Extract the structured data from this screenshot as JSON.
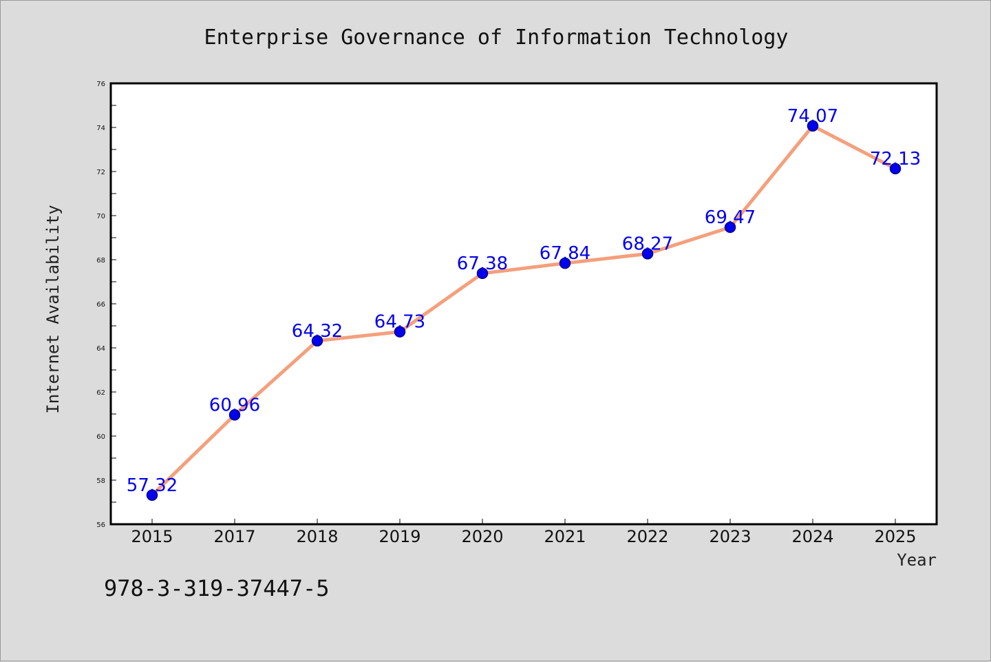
{
  "chart_data": {
    "type": "line",
    "title": "Enterprise Governance of Information Technology",
    "xlabel": "Year",
    "ylabel": "Internet Availability",
    "categories": [
      "2015",
      "2017",
      "2018",
      "2019",
      "2020",
      "2021",
      "2022",
      "2023",
      "2024",
      "2025"
    ],
    "series": [
      {
        "values": [
          57.32,
          60.96,
          64.32,
          64.73,
          67.38,
          67.84,
          68.27,
          69.47,
          74.07,
          72.13
        ]
      }
    ],
    "data_labels": [
      "57.32",
      "60.96",
      "64.32",
      "64.73",
      "67.38",
      "67.84",
      "68.27",
      "69.47",
      "74.07",
      "72.13"
    ],
    "ylim": [
      56,
      76
    ],
    "yticks": [
      56,
      58,
      60,
      62,
      64,
      66,
      68,
      70,
      72,
      74,
      76
    ],
    "grid": false,
    "legend": "none",
    "colors": {
      "line": "#f4a07c",
      "marker": "#0000ee",
      "marker_edge": "#00008b",
      "label": "#0000ee",
      "background": "#dcdcdc",
      "plot_background": "#ffffff"
    }
  },
  "footnote": "978-3-319-37447-5"
}
